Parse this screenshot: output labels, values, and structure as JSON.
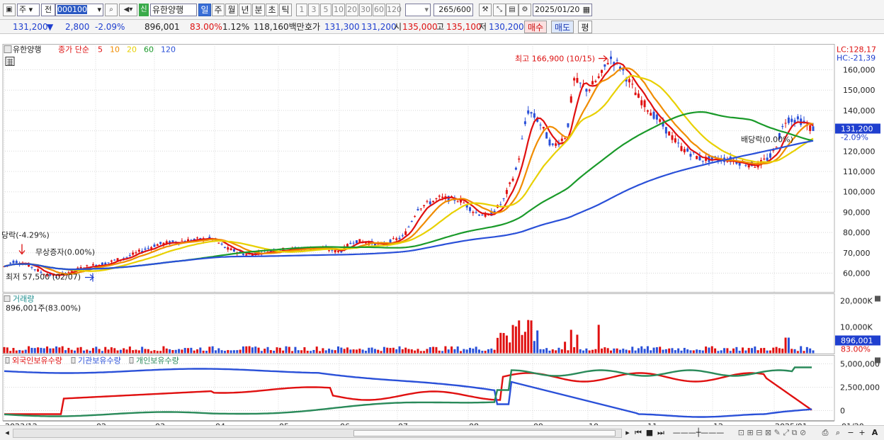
{
  "toolbar": {
    "market_type": "주",
    "mode": "전",
    "code": "000100",
    "badge": "신",
    "stock_name": "유한양행",
    "periods": [
      "일",
      "주",
      "월",
      "년",
      "분",
      "초",
      "틱"
    ],
    "active_period": "일",
    "intervals": [
      "1",
      "3",
      "5",
      "10",
      "20",
      "30",
      "60",
      "120"
    ],
    "count": "265",
    "count_max": "/600",
    "date": "2025/01/20"
  },
  "quote": {
    "price": "131,200",
    "change": "2,800",
    "change_pct": "-2.09%",
    "volume": "896,001",
    "vol_ratio": "83.00%",
    "turnover_pct": "1.12%",
    "amount": "118,160백만",
    "ask_label": "호가",
    "ask": "131,300",
    "bid": "131,200",
    "open_label": "시",
    "open": "135,000",
    "high_label": "고",
    "high": "135,100",
    "low_label": "저",
    "low": "130,200",
    "sell_label": "매수",
    "buy_label": "매도",
    "flat_label": "평"
  },
  "price_panel": {
    "stock_tab": "유한양행",
    "ma_label": "종가 단순",
    "ma_periods": [
      {
        "label": "5",
        "color": "#e01010"
      },
      {
        "label": "10",
        "color": "#f08c00"
      },
      {
        "label": "20",
        "color": "#e8d000"
      },
      {
        "label": "60",
        "color": "#1a9a2a"
      },
      {
        "label": "120",
        "color": "#2a50d8"
      }
    ],
    "lc_label": "LC:128,17",
    "hc_label": "HC:-21,39",
    "current_tag": "131,200",
    "current_pct": "-2.09%",
    "high_note": "최고 166,900 (10/15)",
    "low_note": "최저 57,500 (02/07)",
    "drop_note": "당락(-4.29%)",
    "bonus_note": "무상증자(0.00%)",
    "dividend_note": "배당락(0.00%)",
    "y_ticks": [
      "160,000",
      "150,000",
      "140,000",
      "130,000",
      "120,000",
      "110,000",
      "100,000",
      "90,000",
      "80,000",
      "70,000",
      "60,000"
    ]
  },
  "volume_panel": {
    "title": "거래량",
    "value_label": "896,001주(83.00%)",
    "y_ticks": [
      "20,000K",
      "10,000K"
    ],
    "current_tag": "896,001",
    "current_pct": "83.00%"
  },
  "holding_panel": {
    "series": [
      {
        "label": "외국인보유수량",
        "color": "#e01010"
      },
      {
        "label": "기관보유수량",
        "color": "#2a50d8"
      },
      {
        "label": "개인보유수량",
        "color": "#2a8a5a"
      }
    ],
    "y_ticks": [
      "5,000,000",
      "2,500,000",
      "0"
    ]
  },
  "x_axis": {
    "labels": [
      "2023/12",
      "02",
      "03",
      "04",
      "05",
      "06",
      "07",
      "08",
      "09",
      "10",
      "11",
      "12",
      "2025/01"
    ],
    "right_label": "01/20"
  }
}
